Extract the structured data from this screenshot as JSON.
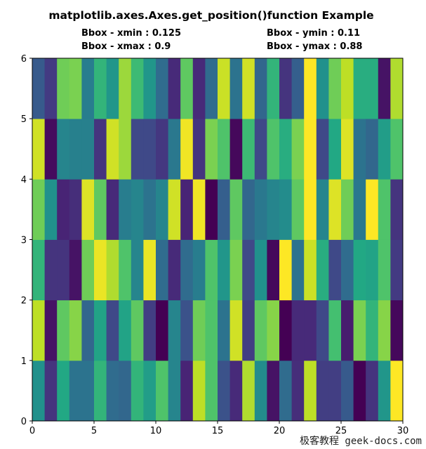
{
  "chart_data": {
    "type": "heatmap",
    "title": "matplotlib.axes.Axes.get_position()function Example",
    "annotations": [
      "Bbox - xmin : 0.125",
      "Bbox - xmax : 0.9",
      "Bbox - ymin : 0.11",
      "Bbox - ymax : 0.88"
    ],
    "colormap": "viridis",
    "xlim": [
      0,
      30
    ],
    "ylim": [
      0,
      6
    ],
    "xticks": [
      "0",
      "5",
      "10",
      "15",
      "20",
      "25",
      "30"
    ],
    "yticks": [
      "0",
      "1",
      "2",
      "3",
      "4",
      "5",
      "6"
    ],
    "values_by_row_from_bottom": [
      [
        0.5,
        0.15,
        0.6,
        0.38,
        0.38,
        0.65,
        0.35,
        0.33,
        0.65,
        0.55,
        0.72,
        0.45,
        0.1,
        0.9,
        0.72,
        0.25,
        0.12,
        0.88,
        0.48,
        0.05,
        0.35,
        0.13,
        0.9,
        0.18,
        0.18,
        0.28,
        0.0,
        0.15,
        0.52,
        1.0
      ],
      [
        0.9,
        0.05,
        0.75,
        0.82,
        0.33,
        0.58,
        0.22,
        0.58,
        0.75,
        0.18,
        0.0,
        0.45,
        0.25,
        0.78,
        0.72,
        0.38,
        0.93,
        0.18,
        0.75,
        0.82,
        0.0,
        0.12,
        0.12,
        0.22,
        0.7,
        0.08,
        0.8,
        0.65,
        0.82,
        0.02
      ],
      [
        0.65,
        0.15,
        0.15,
        0.05,
        0.78,
        0.97,
        0.88,
        0.72,
        0.45,
        0.97,
        0.35,
        0.12,
        0.35,
        0.42,
        0.72,
        0.52,
        0.8,
        0.22,
        0.5,
        0.02,
        1.0,
        0.38,
        0.92,
        0.62,
        0.22,
        0.35,
        0.6,
        0.58,
        0.72,
        0.17
      ],
      [
        0.78,
        0.5,
        0.1,
        0.13,
        0.95,
        0.75,
        0.12,
        0.42,
        0.45,
        0.38,
        0.45,
        0.93,
        0.1,
        0.98,
        0.0,
        0.3,
        0.75,
        0.33,
        0.4,
        0.45,
        0.48,
        0.75,
        1.0,
        0.45,
        0.95,
        0.78,
        0.4,
        1.0,
        0.72,
        0.15
      ],
      [
        0.93,
        0.03,
        0.45,
        0.43,
        0.43,
        0.15,
        0.93,
        0.85,
        0.22,
        0.22,
        0.16,
        0.4,
        0.98,
        0.15,
        0.8,
        0.72,
        0.02,
        0.68,
        0.22,
        0.72,
        0.62,
        0.8,
        1.0,
        0.22,
        0.6,
        0.95,
        0.38,
        0.33,
        0.55,
        0.72
      ],
      [
        0.28,
        0.17,
        0.78,
        0.8,
        0.42,
        0.65,
        0.52,
        0.85,
        0.68,
        0.52,
        0.35,
        0.12,
        0.75,
        0.12,
        0.35,
        0.92,
        0.38,
        0.93,
        0.33,
        0.65,
        0.15,
        0.3,
        1.0,
        0.5,
        0.78,
        0.9,
        0.62,
        0.62,
        0.05,
        0.88
      ]
    ]
  },
  "watermark": "极客教程 geek-docs.com"
}
